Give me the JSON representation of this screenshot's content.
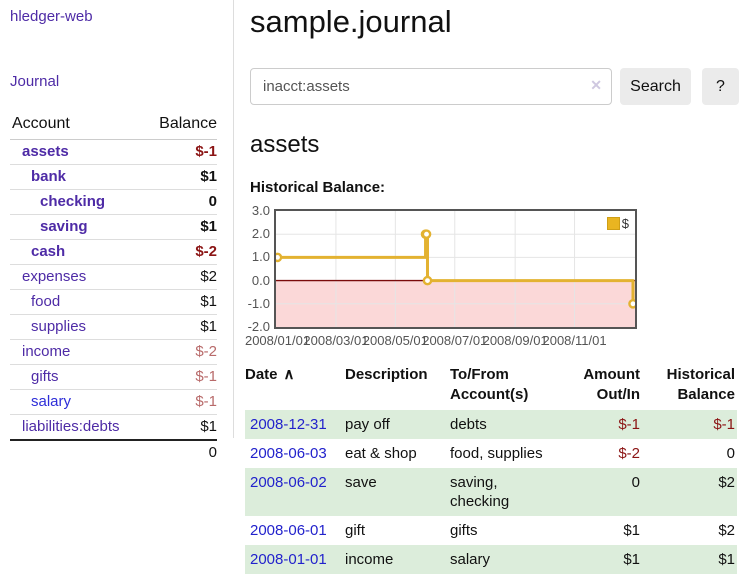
{
  "app": {
    "title": "hledger-web"
  },
  "sidebar": {
    "journal_link": "Journal",
    "header": {
      "account": "Account",
      "balance": "Balance"
    },
    "accounts": [
      {
        "name": "assets",
        "level": 1,
        "bold": true,
        "balance": "$-1",
        "balance_style": "neg-strong"
      },
      {
        "name": "bank",
        "level": 2,
        "bold": true,
        "balance": "$1",
        "balance_style": "pos"
      },
      {
        "name": "checking",
        "level": 3,
        "bold": true,
        "balance": "0",
        "balance_style": "pos"
      },
      {
        "name": "saving",
        "level": 3,
        "bold": true,
        "balance": "$1",
        "balance_style": "pos"
      },
      {
        "name": "cash",
        "level": 2,
        "bold": true,
        "balance": "$-2",
        "balance_style": "neg-strong"
      },
      {
        "name": "expenses",
        "level": 1,
        "bold": false,
        "balance": "$2",
        "balance_style": "pos"
      },
      {
        "name": "food",
        "level": 2,
        "bold": false,
        "balance": "$1",
        "balance_style": "pos"
      },
      {
        "name": "supplies",
        "level": 2,
        "bold": false,
        "balance": "$1",
        "balance_style": "pos"
      },
      {
        "name": "income",
        "level": 1,
        "bold": false,
        "balance": "$-2",
        "balance_style": "neg-soft"
      },
      {
        "name": "gifts",
        "level": 2,
        "bold": false,
        "balance": "$-1",
        "balance_style": "neg-soft"
      },
      {
        "name": "salary",
        "level": 2,
        "bold": false,
        "balance": "$-1",
        "balance_style": "neg-soft",
        "link_color": "blue"
      },
      {
        "name": "liabilities:debts",
        "level": 1,
        "bold": false,
        "balance": "$1",
        "balance_style": "pos"
      }
    ],
    "total": "0"
  },
  "main": {
    "title": "sample.journal",
    "search": {
      "value": "inacct:assets",
      "clear_icon": "✕",
      "button_label": "Search",
      "help_label": "?"
    },
    "account_heading": "assets",
    "chart_label": "Historical Balance:"
  },
  "chart_data": {
    "type": "line",
    "title": "Historical Balance",
    "style": "step-after with point markers, negative region shaded",
    "series": [
      {
        "name": "$",
        "points": [
          [
            "2008-01-01",
            1
          ],
          [
            "2008-06-01",
            2
          ],
          [
            "2008-06-02",
            2
          ],
          [
            "2008-06-03",
            0
          ],
          [
            "2008-12-31",
            -1
          ]
        ]
      }
    ],
    "xrange": [
      "2008-01-01",
      "2008-12-31"
    ],
    "ylim": [
      -2,
      3
    ],
    "yticks": [
      "3.0",
      "2.0",
      "1.0",
      "0.0",
      "-1.0",
      "-2.0"
    ],
    "xticks": [
      "2008/01/01",
      "2008/03/01",
      "2008/05/01",
      "2008/07/01",
      "2008/09/01",
      "2008/11/01"
    ],
    "legend": {
      "label": "$",
      "position": "top-right"
    },
    "colors": {
      "line": "#e3b231",
      "marker_fill": "#ffffff",
      "negative_region": "#fbd8d8",
      "zero_line": "#7a0b0b",
      "grid": "#e5e5e5",
      "border": "#555555"
    }
  },
  "register": {
    "headers": [
      {
        "lines": [
          "Date"
        ],
        "align": "left",
        "sort_icon": "∧"
      },
      {
        "lines": [
          "Description"
        ],
        "align": "left"
      },
      {
        "lines": [
          "To/From",
          "Account(s)"
        ],
        "align": "left"
      },
      {
        "lines": [
          "Amount",
          "Out/In"
        ],
        "align": "right"
      },
      {
        "lines": [
          "Historical",
          "Balance"
        ],
        "align": "right"
      }
    ],
    "rows": [
      {
        "date": "2008-12-31",
        "description": "pay off",
        "accounts": "debts",
        "amount": "$-1",
        "amount_neg": true,
        "balance": "$-1",
        "balance_neg": true
      },
      {
        "date": "2008-06-03",
        "description": "eat & shop",
        "accounts": "food, supplies",
        "amount": "$-2",
        "amount_neg": true,
        "balance": "0",
        "balance_neg": false
      },
      {
        "date": "2008-06-02",
        "description": "save",
        "accounts": "saving, checking",
        "amount": "0",
        "amount_neg": false,
        "balance": "$2",
        "balance_neg": false
      },
      {
        "date": "2008-06-01",
        "description": "gift",
        "accounts": "gifts",
        "amount": "$1",
        "amount_neg": false,
        "balance": "$2",
        "balance_neg": false
      },
      {
        "date": "2008-01-01",
        "description": "income",
        "accounts": "salary",
        "amount": "$1",
        "amount_neg": false,
        "balance": "$1",
        "balance_neg": false
      }
    ]
  }
}
